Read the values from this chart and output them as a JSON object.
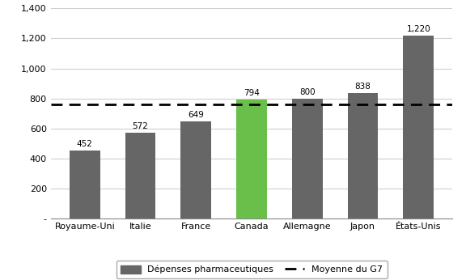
{
  "categories": [
    "Royaume-Uni",
    "Italie",
    "France",
    "Canada",
    "Allemagne",
    "Japon",
    "États-Unis"
  ],
  "values": [
    452,
    572,
    649,
    794,
    800,
    838,
    1220
  ],
  "bar_colors": [
    "#666666",
    "#666666",
    "#666666",
    "#6abf4b",
    "#666666",
    "#666666",
    "#666666"
  ],
  "average_line": 761,
  "ylim": [
    0,
    1400
  ],
  "yticks": [
    0,
    200,
    400,
    600,
    800,
    1000,
    1200,
    1400
  ],
  "ytick_labels": [
    "-",
    "200",
    "400",
    "600",
    "800",
    "1,000",
    "1,200",
    "1,400"
  ],
  "legend_bar_label": "Dépenses pharmaceutiques",
  "legend_line_label": "Moyenne du G7",
  "background_color": "#ffffff",
  "grid_color": "#d0d0d0",
  "tick_fontsize": 8,
  "legend_fontsize": 8,
  "value_fontsize": 7.5
}
